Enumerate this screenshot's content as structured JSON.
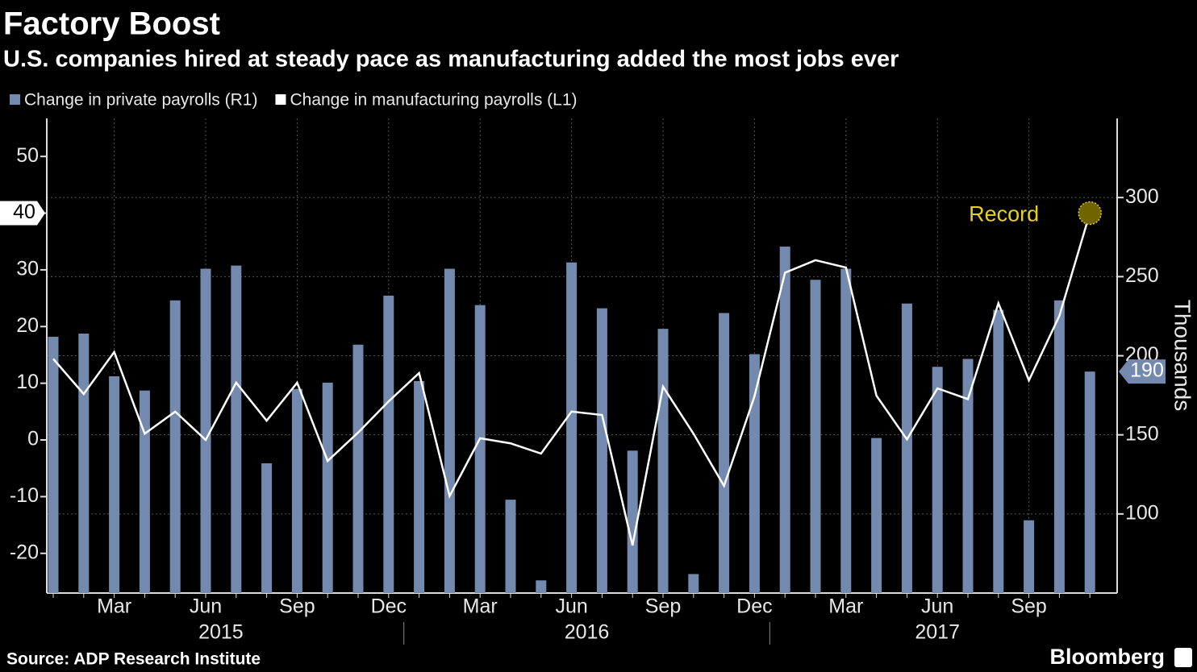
{
  "chart_data": {
    "type": "bar",
    "title": "Factory Boost",
    "subtitle": "U.S. companies hired at steady pace as manufacturing added the most jobs ever",
    "source": "Source: ADP Research Institute",
    "brand": "Bloomberg",
    "y2_label": "Thousands",
    "annotation": "Record",
    "annotation_color": "#e6d21e",
    "categories": [
      null,
      null,
      "Mar",
      null,
      null,
      "Jun",
      null,
      null,
      "Sep",
      null,
      null,
      "Dec",
      null,
      null,
      "Mar",
      null,
      null,
      "Jun",
      null,
      null,
      "Sep",
      null,
      null,
      "Dec",
      null,
      null,
      "Mar",
      null,
      null,
      "Jun",
      null,
      null,
      "Sep",
      null,
      null
    ],
    "years": [
      "2015",
      "2016",
      "2017"
    ],
    "series": [
      {
        "name": "Change in private payrolls (R1)",
        "type": "bar",
        "axis": "y2",
        "color": "#7489ae",
        "values": [
          212,
          214,
          187,
          178,
          235,
          255,
          257,
          132,
          179,
          183,
          207,
          238,
          184,
          255,
          232,
          109,
          58,
          259,
          230,
          140,
          217,
          62,
          227,
          201,
          269,
          248,
          255,
          148,
          233,
          193,
          198,
          229,
          96,
          235,
          190
        ]
      },
      {
        "name": "Change in manufacturing payrolls (L1)",
        "type": "line",
        "axis": "y",
        "color": "#ffffff",
        "values": [
          14.3,
          8.1,
          15.5,
          1.1,
          5.0,
          0,
          10.1,
          3.4,
          10.1,
          -3.7,
          1.3,
          6.8,
          11.8,
          -9.9,
          0.3,
          -0.6,
          -2.4,
          5.0,
          4.4,
          -18.6,
          9.4,
          1.1,
          -8.1,
          7.7,
          29.5,
          31.7,
          30.4,
          7.8,
          0.1,
          9.1,
          7.2,
          24.1,
          10.5,
          21.9,
          40
        ]
      }
    ],
    "ylim": [
      -27,
      56.7
    ],
    "yticks": [
      -20,
      -10,
      0,
      10,
      20,
      30,
      40,
      50
    ],
    "y2lim": [
      50,
      350
    ],
    "y2ticks": [
      100,
      150,
      200,
      250,
      300
    ],
    "grid": true
  }
}
